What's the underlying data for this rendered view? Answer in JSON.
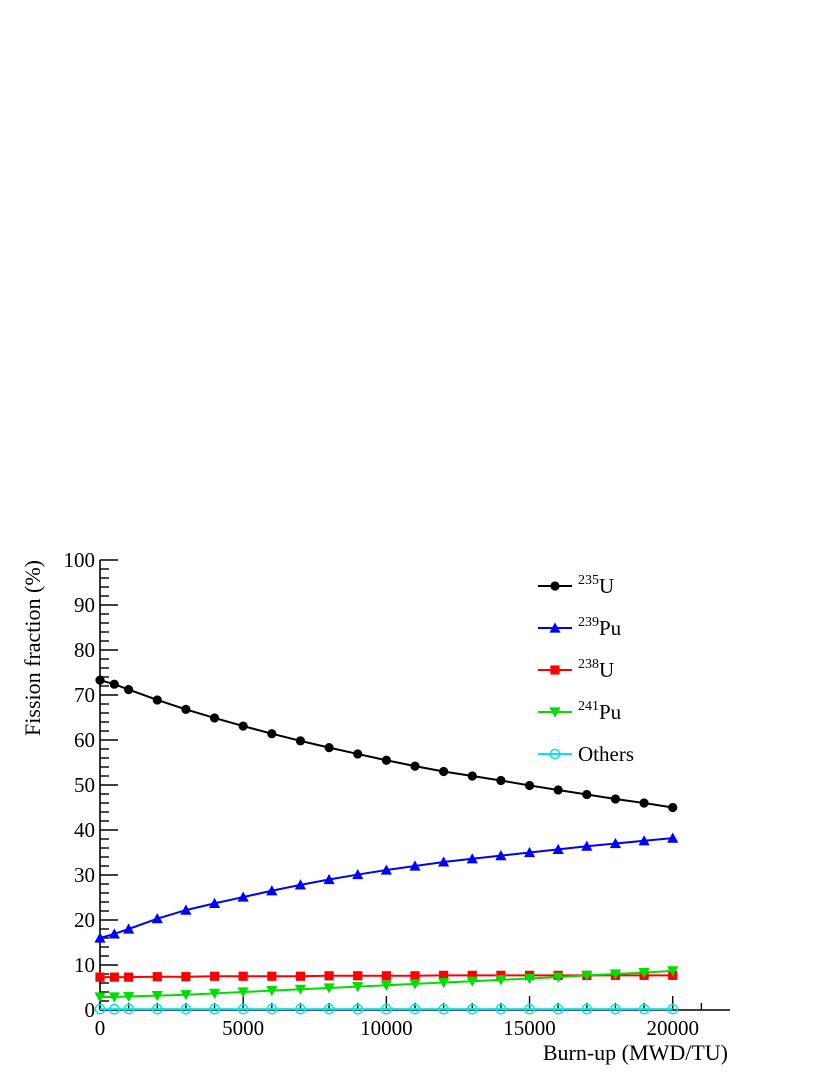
{
  "chart_data": {
    "type": "line",
    "xlabel": "Burn-up (MWD/TU)",
    "ylabel": "Fission fraction (%)",
    "xlim": [
      0,
      22000
    ],
    "ylim": [
      0,
      100
    ],
    "x_ticks": [
      "0",
      "5000",
      "10000",
      "15000",
      "20000"
    ],
    "y_ticks": [
      "0",
      "10",
      "20",
      "30",
      "40",
      "50",
      "60",
      "70",
      "80",
      "90",
      "100"
    ],
    "grid": false,
    "legend_position": "top-right",
    "x": [
      0,
      500,
      1000,
      2000,
      3000,
      4000,
      5000,
      6000,
      7000,
      8000,
      9000,
      10000,
      11000,
      12000,
      13000,
      14000,
      15000,
      16000,
      17000,
      18000,
      19000,
      20000
    ],
    "series": [
      {
        "name": "U",
        "isotope_mass": "235",
        "color": "#000000",
        "marker": "circle-filled",
        "values": [
          73.3,
          72.4,
          71.2,
          68.9,
          66.8,
          64.9,
          63.1,
          61.4,
          59.8,
          58.3,
          56.9,
          55.5,
          54.2,
          53.0,
          52.0,
          51.0,
          49.9,
          48.9,
          47.9,
          46.9,
          46.0,
          45.0
        ]
      },
      {
        "name": "Pu",
        "isotope_mass": "239",
        "color": "#0000ff",
        "marker": "triangle-up",
        "values": [
          16.0,
          16.9,
          18.0,
          20.3,
          22.2,
          23.7,
          25.1,
          26.5,
          27.8,
          29.0,
          30.1,
          31.1,
          32.0,
          32.9,
          33.6,
          34.3,
          35.0,
          35.7,
          36.4,
          37.0,
          37.6,
          38.2
        ]
      },
      {
        "name": "U",
        "isotope_mass": "238",
        "color": "#ff0000",
        "marker": "square-filled",
        "values": [
          7.3,
          7.3,
          7.3,
          7.4,
          7.4,
          7.5,
          7.5,
          7.5,
          7.5,
          7.6,
          7.6,
          7.6,
          7.6,
          7.7,
          7.7,
          7.7,
          7.7,
          7.7,
          7.7,
          7.7,
          7.7,
          7.7
        ]
      },
      {
        "name": "Pu",
        "isotope_mass": "241",
        "color": "#00dd00",
        "marker": "triangle-down",
        "values": [
          2.9,
          2.9,
          3.0,
          3.2,
          3.4,
          3.7,
          4.0,
          4.3,
          4.6,
          4.9,
          5.2,
          5.5,
          5.8,
          6.1,
          6.4,
          6.7,
          7.0,
          7.3,
          7.7,
          8.0,
          8.3,
          8.7
        ]
      },
      {
        "name": "Others",
        "isotope_mass": "",
        "color": "#00e5ee",
        "marker": "circle-open",
        "values": [
          0.2,
          0.2,
          0.2,
          0.2,
          0.2,
          0.2,
          0.2,
          0.2,
          0.2,
          0.2,
          0.2,
          0.2,
          0.2,
          0.2,
          0.2,
          0.2,
          0.2,
          0.2,
          0.2,
          0.2,
          0.2,
          0.2
        ]
      }
    ]
  }
}
